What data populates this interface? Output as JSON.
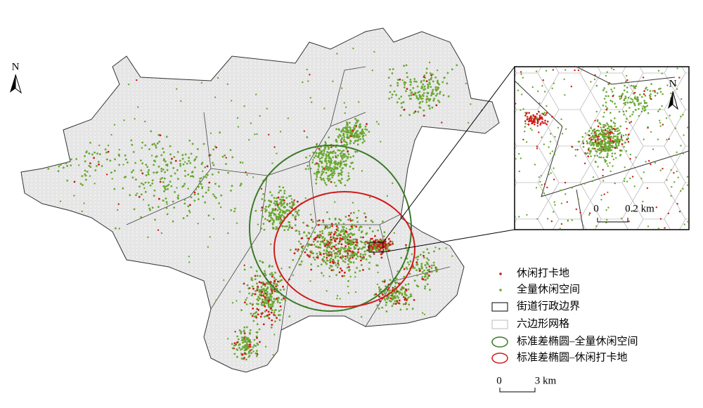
{
  "map": {
    "north_arrow": "N",
    "scale_bar": {
      "start": "0",
      "end": "3 km"
    }
  },
  "inset": {
    "north_arrow": "N",
    "scale_bar": {
      "start": "0",
      "end": "0.2 km"
    }
  },
  "legend": {
    "items": [
      "休闲打卡地",
      "全量休闲空间",
      "街道行政边界",
      "六边形网格",
      "标准差椭圆–全量休闲空间",
      "标准差椭圆–休闲打卡地"
    ]
  }
}
